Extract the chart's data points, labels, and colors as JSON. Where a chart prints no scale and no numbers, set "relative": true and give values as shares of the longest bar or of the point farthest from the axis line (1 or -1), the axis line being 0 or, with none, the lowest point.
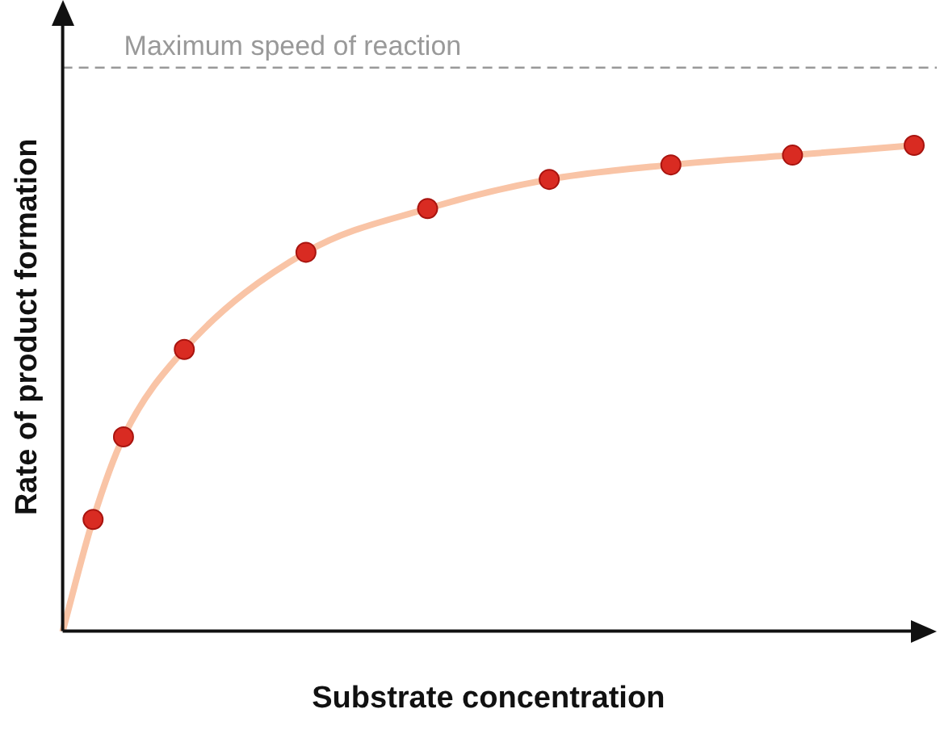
{
  "chart_data": {
    "type": "line",
    "relative": true,
    "xlabel": "Substrate concentration",
    "ylabel": "Rate of product formation",
    "grid": false,
    "legend": false,
    "marker": "circle",
    "categories": [
      null,
      null,
      null,
      null,
      null,
      null,
      null,
      null,
      null,
      null,
      null,
      null,
      null,
      null,
      null,
      null,
      null,
      null,
      null,
      null,
      null,
      null,
      null,
      null,
      null,
      null,
      null,
      null,
      null
    ],
    "series": [
      {
        "color": "#f9c4a6",
        "colors": [
          null,
          "#d92b22",
          "#d92b22",
          null,
          "#d92b22",
          null,
          null,
          null,
          "#d92b22",
          null,
          null,
          null,
          "#d92b22",
          null,
          null,
          null,
          "#d92b22",
          null,
          null,
          null,
          "#d92b22",
          null,
          null,
          null,
          "#d92b22",
          null,
          null,
          null,
          "#d92b22"
        ],
        "values": [
          0,
          0.23,
          0.4,
          null,
          0.58,
          null,
          null,
          null,
          0.78,
          null,
          null,
          null,
          0.87,
          null,
          null,
          null,
          0.93,
          null,
          null,
          null,
          0.96,
          null,
          null,
          null,
          0.98,
          null,
          null,
          null,
          1
        ]
      }
    ],
    "ref_lines": [
      {
        "axis": "y",
        "value": 1.16,
        "label": "Maximum speed of reaction",
        "color": "#999999",
        "line_style": "dashed"
      }
    ]
  }
}
